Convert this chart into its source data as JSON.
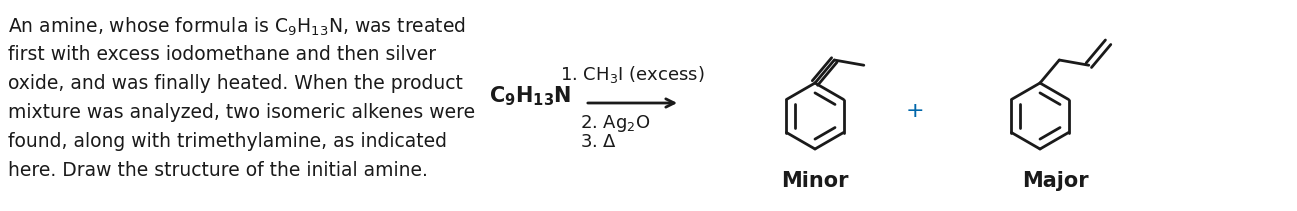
{
  "bg_color": "#ffffff",
  "text_color": "#1a1a1a",
  "paragraph": [
    "An amine, whose formula is C₉H₁₃N, was treated",
    "first with excess iodomethane and then silver",
    "oxide, and was finally heated. When the product",
    "mixture was analyzed, two isomeric alkenes were",
    "found, along with trimethylamine, as indicated",
    "here. Draw the structure of the initial amine."
  ],
  "reagent_label": "C₉H₁₃N",
  "conditions": [
    "1. CH₃I (excess)",
    "2. Ag₂O",
    "3. Δ"
  ],
  "minor_label": "Minor",
  "major_label": "Major",
  "plus_sign": "+",
  "fontsize_paragraph": 13.5,
  "fontsize_reagent": 14,
  "fontsize_conditions": 13,
  "fontsize_labels": 15
}
